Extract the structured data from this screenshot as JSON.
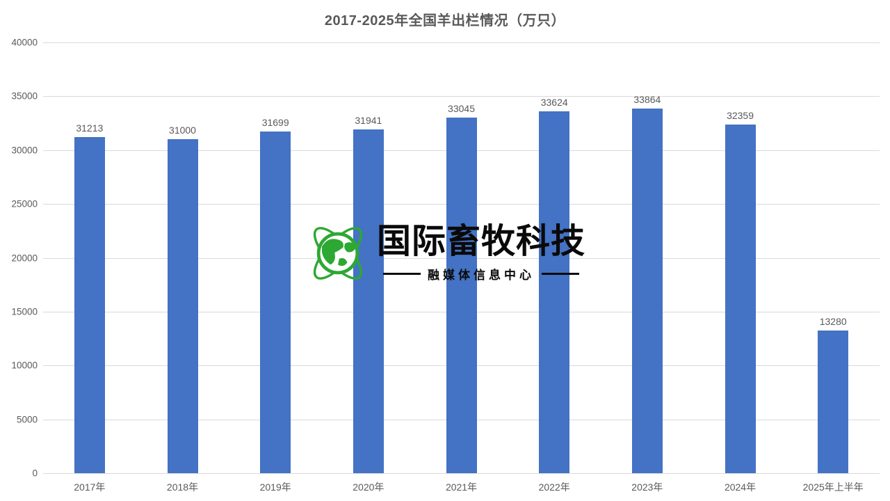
{
  "chart_data": {
    "type": "bar",
    "title": "2017-2025年全国羊出栏情况（万只）",
    "categories": [
      "2017年",
      "2018年",
      "2019年",
      "2020年",
      "2021年",
      "2022年",
      "2023年",
      "2024年",
      "2025年上半年"
    ],
    "values": [
      31213,
      31000,
      31699,
      31941,
      33045,
      33624,
      33864,
      32359,
      13280
    ],
    "ylim": [
      0,
      40000
    ],
    "ytick_step": 5000,
    "yticks": [
      0,
      5000,
      10000,
      15000,
      20000,
      25000,
      30000,
      35000,
      40000
    ],
    "grid": "horizontal",
    "legend": "none",
    "data_labels": "above-bars",
    "bar_color": "#4472C4",
    "text_color": "#595959",
    "grid_color": "#D9D9D9"
  },
  "watermark": {
    "logo": "globe-orbit-icon",
    "brand_text": "国际畜牧科技",
    "subtitle": "融媒体信息中心",
    "brand_color": "#0a0a0a",
    "globe_color": "#2DA832"
  }
}
